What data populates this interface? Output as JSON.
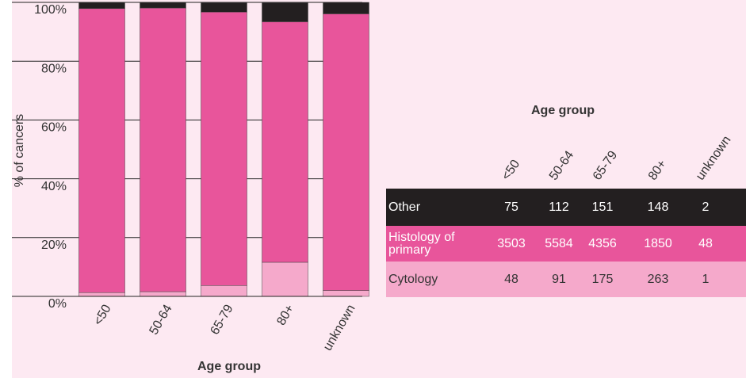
{
  "chart_data": {
    "type": "stacked_bar",
    "y_label": "% of cancers",
    "x_label": "Age group",
    "categories": [
      "<50",
      "50-64",
      "65-79",
      "80+",
      "unknown"
    ],
    "series": [
      {
        "name": "Other",
        "color": "#231f20",
        "values": [
          2.1,
          1.9,
          3.2,
          6.5,
          3.9
        ]
      },
      {
        "name": "Histology of primary",
        "color": "#e8559b",
        "values": [
          96.6,
          96.5,
          93.0,
          81.8,
          94.1
        ]
      },
      {
        "name": "Cytology",
        "color": "#f5a9cb",
        "values": [
          1.3,
          1.6,
          3.7,
          11.6,
          2.0
        ]
      }
    ],
    "ylim": [
      0,
      100
    ],
    "yticks": [
      {
        "value": 0,
        "label": "0%"
      },
      {
        "value": 20,
        "label": "20%"
      },
      {
        "value": 40,
        "label": "40%"
      },
      {
        "value": 60,
        "label": "60%"
      },
      {
        "value": 80,
        "label": "80%"
      },
      {
        "value": 100,
        "label": "100%"
      }
    ],
    "grid": true
  },
  "table": {
    "title": "Age group",
    "counts": [
      [
        75,
        112,
        151,
        148,
        2
      ],
      [
        3503,
        5584,
        4356,
        1850,
        48
      ],
      [
        48,
        91,
        175,
        263,
        1
      ]
    ],
    "text_colors": [
      "#ffffff",
      "#ffffff",
      "#333333"
    ]
  }
}
